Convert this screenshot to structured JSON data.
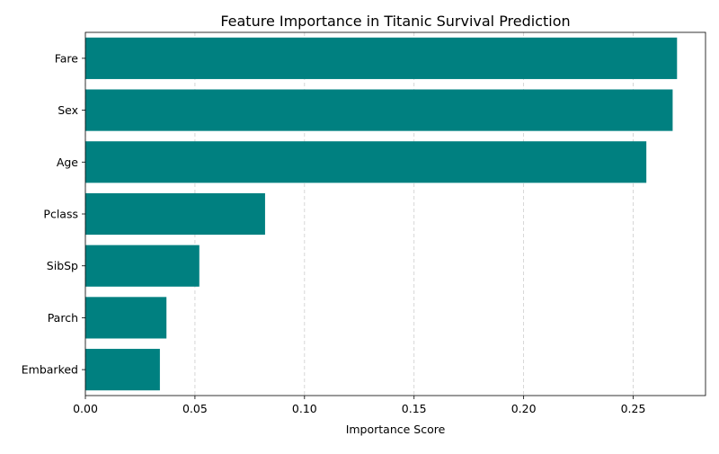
{
  "colors": {
    "bar": "#008080",
    "grid": "#cccccc",
    "axis": "#000000"
  },
  "chart_data": {
    "type": "bar",
    "orientation": "horizontal",
    "title": "Feature Importance in Titanic Survival Prediction",
    "xlabel": "Importance Score",
    "ylabel": "",
    "categories": [
      "Fare",
      "Sex",
      "Age",
      "Pclass",
      "SibSp",
      "Parch",
      "Embarked"
    ],
    "values": [
      0.27,
      0.268,
      0.256,
      0.082,
      0.052,
      0.037,
      0.034
    ],
    "xlim": [
      0,
      0.283
    ],
    "xticks": [
      0.0,
      0.05,
      0.1,
      0.15,
      0.2,
      0.25
    ],
    "xtick_labels": [
      "0.00",
      "0.05",
      "0.10",
      "0.15",
      "0.20",
      "0.25"
    ],
    "grid": {
      "x": true,
      "y": false,
      "style": "dashed"
    },
    "legend": "none"
  }
}
